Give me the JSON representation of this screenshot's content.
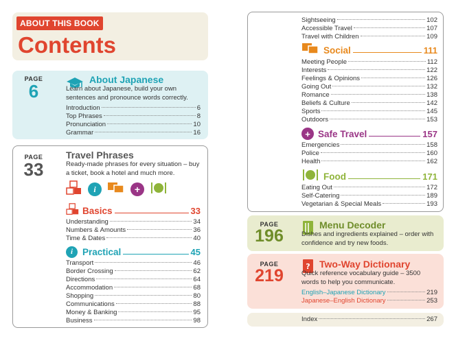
{
  "header": {
    "badge": "ABOUT THIS BOOK",
    "title": "Contents"
  },
  "about": {
    "page_label": "PAGE",
    "page_num": "6",
    "title": "About Japanese",
    "desc": "Learn about Japanese, build your own sentences and pronounce words correctly.",
    "items": [
      {
        "label": "Introduction",
        "page": "6"
      },
      {
        "label": "Top Phrases",
        "page": "8"
      },
      {
        "label": "Pronunciation",
        "page": "10"
      },
      {
        "label": "Grammar",
        "page": "16"
      }
    ]
  },
  "travel": {
    "page_label": "PAGE",
    "page_num": "33",
    "title": "Travel Phrases",
    "desc": "Ready-made phrases for every situation – buy a ticket, book a hotel and much more.",
    "basics": {
      "title": "Basics",
      "page": "33",
      "items": [
        {
          "label": "Understanding",
          "page": "34"
        },
        {
          "label": "Numbers & Amounts",
          "page": "36"
        },
        {
          "label": "Time & Dates",
          "page": "40"
        }
      ]
    },
    "practical": {
      "title": "Practical",
      "page": "45",
      "items": [
        {
          "label": "Transport",
          "page": "46"
        },
        {
          "label": "Border Crossing",
          "page": "62"
        },
        {
          "label": "Directions",
          "page": "64"
        },
        {
          "label": "Accommodation",
          "page": "68"
        },
        {
          "label": "Shopping",
          "page": "80"
        },
        {
          "label": "Communications",
          "page": "88"
        },
        {
          "label": "Money & Banking",
          "page": "95"
        },
        {
          "label": "Business",
          "page": "98"
        }
      ]
    }
  },
  "right": {
    "top_items": [
      {
        "label": "Sightseeing",
        "page": "102"
      },
      {
        "label": "Accessible Travel",
        "page": "107"
      },
      {
        "label": "Travel with Children",
        "page": "109"
      }
    ],
    "social": {
      "title": "Social",
      "page": "111",
      "items": [
        {
          "label": "Meeting People",
          "page": "112"
        },
        {
          "label": "Interests",
          "page": "122"
        },
        {
          "label": "Feelings & Opinions",
          "page": "126"
        },
        {
          "label": "Going Out",
          "page": "132"
        },
        {
          "label": "Romance",
          "page": "138"
        },
        {
          "label": "Beliefs & Culture",
          "page": "142"
        },
        {
          "label": "Sports",
          "page": "145"
        },
        {
          "label": "Outdoors",
          "page": "153"
        }
      ]
    },
    "safe": {
      "title": "Safe Travel",
      "page": "157",
      "items": [
        {
          "label": "Emergencies",
          "page": "158"
        },
        {
          "label": "Police",
          "page": "160"
        },
        {
          "label": "Health",
          "page": "162"
        }
      ]
    },
    "food": {
      "title": "Food",
      "page": "171",
      "items": [
        {
          "label": "Eating Out",
          "page": "172"
        },
        {
          "label": "Self-Catering",
          "page": "189"
        },
        {
          "label": "Vegetarian & Special Meals",
          "page": "193"
        }
      ]
    }
  },
  "menu": {
    "page_label": "PAGE",
    "page_num": "196",
    "title": "Menu Decoder",
    "desc": "Dishes and ingredients explained – order with confidence and try new foods."
  },
  "dict": {
    "page_label": "PAGE",
    "page_num": "219",
    "title": "Two-Way Dictionary",
    "desc": "Quick reference vocabulary guide – 3500 words to help you communicate.",
    "items": [
      {
        "label": "English–Japanese Dictionary",
        "page": "219"
      },
      {
        "label": "Japanese–English Dictionary",
        "page": "253"
      }
    ]
  },
  "index": {
    "label": "Index",
    "page": "267"
  },
  "colors": {
    "red": "#e0452f",
    "teal": "#1fa3b5",
    "orange": "#e8891d",
    "purple": "#9a3586",
    "green": "#8fb43a",
    "olive": "#6f8d2a",
    "cyan_bg": "#def1f3",
    "olive_bg": "#e9eccf",
    "pink_bg": "#fbe0d8",
    "beige_bg": "#f3efe2"
  }
}
